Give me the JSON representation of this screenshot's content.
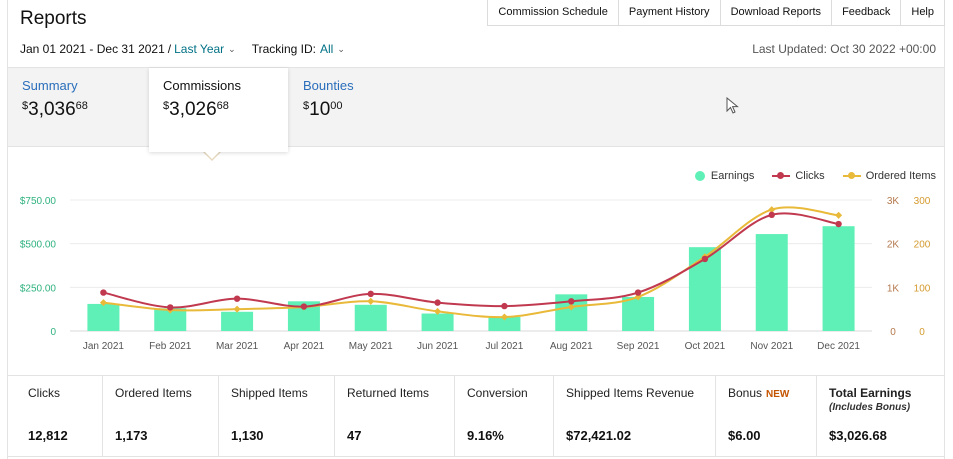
{
  "header": {
    "title": "Reports",
    "nav": [
      "Commission Schedule",
      "Payment History",
      "Download Reports",
      "Feedback",
      "Help"
    ]
  },
  "filters": {
    "date_range": "Jan 01 2021 - Dec 31 2021",
    "separator": "/",
    "period": "Last Year",
    "tracking_label": "Tracking ID:",
    "tracking_value": "All",
    "last_updated": "Last Updated: Oct 30 2022 +00:00"
  },
  "tabs": [
    {
      "label": "Summary",
      "currency": "$",
      "whole": "3,036",
      "cents": "68"
    },
    {
      "label": "Commissions",
      "currency": "$",
      "whole": "3,026",
      "cents": "68"
    },
    {
      "label": "Bounties",
      "currency": "$",
      "whole": "10",
      "cents": "00"
    }
  ],
  "colors": {
    "earnings": "#5ef0b6",
    "clicks": "#c0394f",
    "ordered": "#e9b93a",
    "left_axis": "#2fb27f",
    "right_axis_outer": "#b5784c",
    "right_axis_inner": "#d49a2e"
  },
  "legend": {
    "earnings": "Earnings",
    "clicks": "Clicks",
    "ordered": "Ordered Items"
  },
  "chart_data": {
    "type": "bar",
    "categories": [
      "Jan 2021",
      "Feb 2021",
      "Mar 2021",
      "Apr 2021",
      "May 2021",
      "Jun 2021",
      "Jul 2021",
      "Aug 2021",
      "Sep 2021",
      "Oct 2021",
      "Nov 2021",
      "Dec 2021"
    ],
    "y_left": {
      "ticks": [
        "0",
        "$250.00",
        "$500.00",
        "$750.00"
      ],
      "min": 0,
      "max": 750
    },
    "y_right_outer": {
      "ticks": [
        "0",
        "1K",
        "2K",
        "3K"
      ],
      "min": 0,
      "max": 3000
    },
    "y_right_inner": {
      "ticks": [
        "0",
        "100",
        "200",
        "300"
      ],
      "min": 0,
      "max": 300
    },
    "series": [
      {
        "name": "Earnings",
        "type": "bar",
        "axis": "left",
        "values": [
          155,
          130,
          110,
          170,
          150,
          100,
          80,
          210,
          195,
          480,
          555,
          600
        ]
      },
      {
        "name": "Clicks",
        "type": "line",
        "axis": "right_outer",
        "values": [
          880,
          540,
          740,
          560,
          850,
          650,
          570,
          680,
          880,
          1650,
          2660,
          2450
        ]
      },
      {
        "name": "Ordered Items",
        "type": "line",
        "axis": "right_inner",
        "values": [
          65,
          48,
          50,
          55,
          68,
          45,
          32,
          55,
          78,
          170,
          278,
          265
        ]
      }
    ]
  },
  "stats": [
    {
      "label": "Clicks",
      "value": "12,812"
    },
    {
      "label": "Ordered Items",
      "value": "1,173"
    },
    {
      "label": "Shipped Items",
      "value": "1,130"
    },
    {
      "label": "Returned Items",
      "value": "47"
    },
    {
      "label": "Conversion",
      "value": "9.16%"
    },
    {
      "label": "Shipped Items Revenue",
      "value": "$72,421.02"
    },
    {
      "label": "Bonus",
      "badge": "NEW",
      "value": "$6.00"
    },
    {
      "label": "Total Earnings",
      "sub": "(Includes Bonus)",
      "value": "$3,026.68"
    }
  ]
}
